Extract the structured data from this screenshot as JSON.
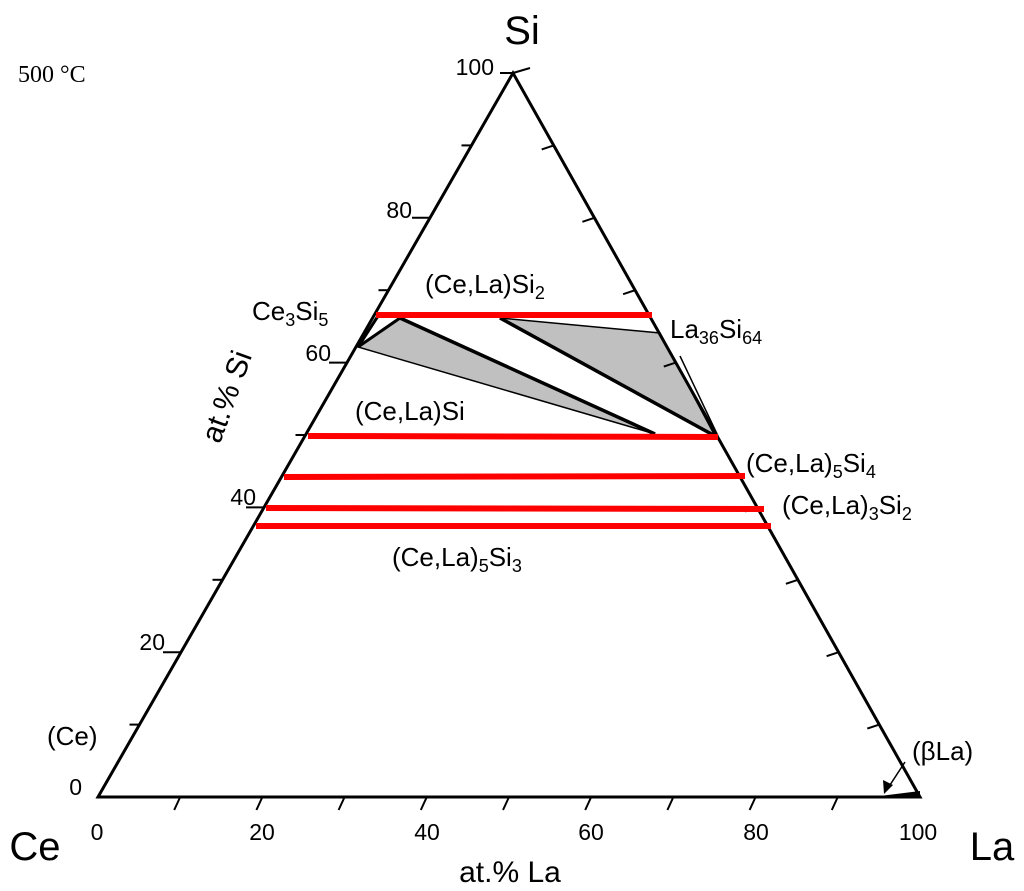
{
  "vertices": {
    "top": "Si",
    "left": "Ce",
    "right": "La"
  },
  "temperature": "500 °C",
  "axes": {
    "left_label": "at.% Si",
    "bottom_label": "at.% La",
    "left_ticks": [
      "100",
      "80",
      "60",
      "40",
      "20",
      "0"
    ],
    "bottom_ticks": [
      "0",
      "20",
      "40",
      "60",
      "80",
      "100"
    ]
  },
  "phases": {
    "cela_si2": [
      "(Ce,La)Si",
      "2"
    ],
    "ce3si5": [
      "Ce",
      "3",
      "Si",
      "5"
    ],
    "la36si64": [
      "La",
      "36",
      "Si",
      "64"
    ],
    "cela_si": [
      "(Ce,La)Si"
    ],
    "cela5si4": [
      "(Ce,La)",
      "5",
      "Si",
      "4"
    ],
    "cela3si2": [
      "(Ce,La)",
      "3",
      "Si",
      "2"
    ],
    "cela5si3": [
      "(Ce,La)",
      "5",
      "Si",
      "3"
    ],
    "ce_solid": [
      "(Ce)"
    ],
    "beta_la": [
      "(βLa)"
    ]
  }
}
